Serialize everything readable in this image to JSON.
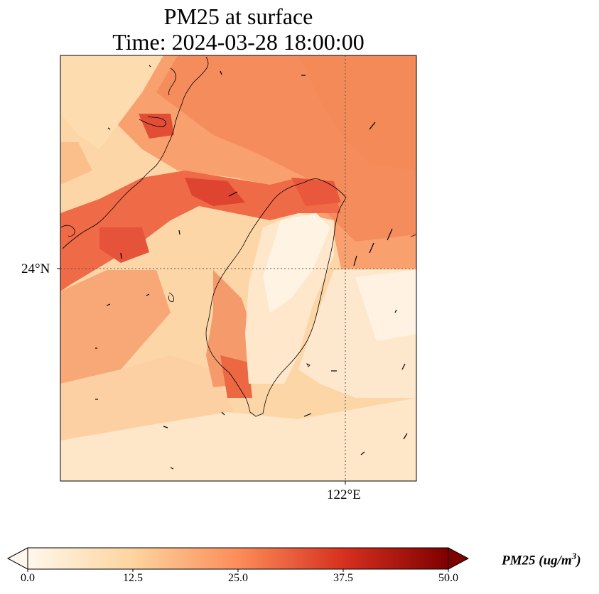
{
  "title": {
    "line1": "PM25 at surface",
    "line2": "Time: 2024-03-28 18:00:00"
  },
  "map": {
    "gridlines": {
      "latitude_label": "24°N",
      "longitude_label": "122°E"
    },
    "colormap": "OrRd",
    "features": [
      "coastline",
      "wind-vectors",
      "pm25-field"
    ]
  },
  "colorbar": {
    "label_main": "PM25 (ug/m",
    "label_sup": "3",
    "label_end": ")",
    "ticks": [
      "0.0",
      "12.5",
      "25.0",
      "37.5",
      "50.0"
    ],
    "min": 0,
    "max": 50,
    "colors": [
      "#fff7ec",
      "#fdd49e",
      "#fc8d59",
      "#d7301f",
      "#7f0000"
    ]
  }
}
